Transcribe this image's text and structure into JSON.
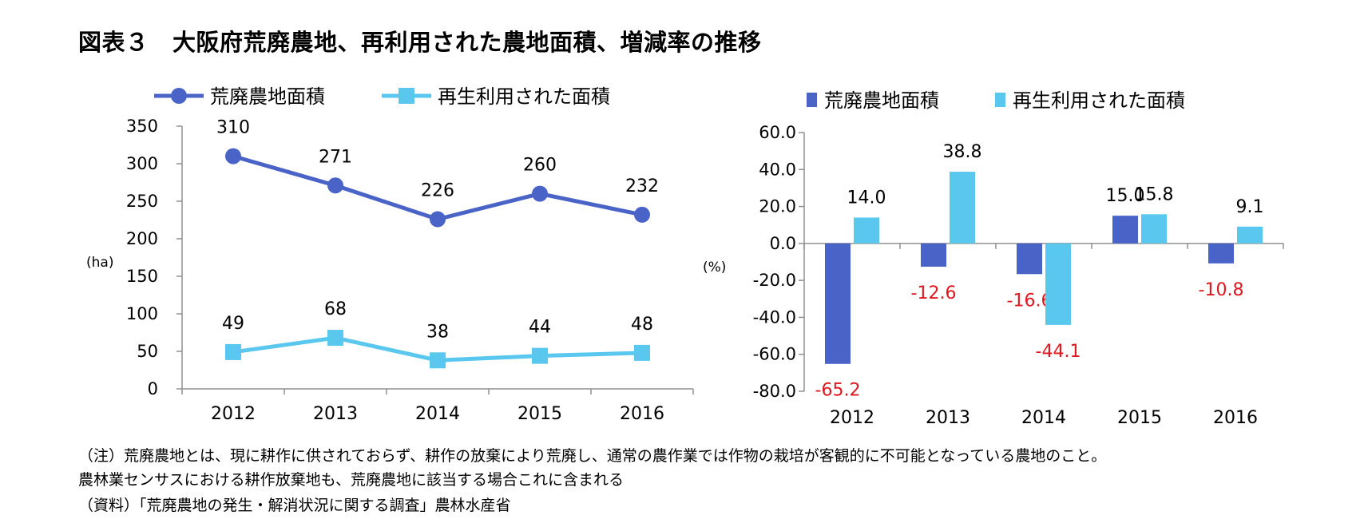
{
  "title": "図表３　大阪府荒廃農地、再利用された農地面積、増減率の推移",
  "notes": [
    "（注）荒廃農地とは、現に耕作に供されておらず、耕作の放棄により荒廃し、通常の農作業では作物の栽培が客観的に不可能となっている農地のこと。",
    "農林業センサスにおける耕作放棄地も、荒廃農地に該当する場合これに含まれる",
    "（資料）「荒廃農地の発生・解消状況に関する調査」農林水産省"
  ],
  "colors": {
    "series1": "#4a63c7",
    "series2": "#5ac8ee",
    "negative_label": "#e0161e",
    "axis": "#909090"
  },
  "chart_data": [
    {
      "type": "line",
      "categories": [
        "2012",
        "2013",
        "2014",
        "2015",
        "2016"
      ],
      "series": [
        {
          "name": "荒廃農地面積",
          "values": [
            310,
            271,
            226,
            260,
            232
          ],
          "marker": "circle"
        },
        {
          "name": "再生利用された面積",
          "values": [
            49,
            68,
            38,
            44,
            48
          ],
          "marker": "square"
        }
      ],
      "ylabel": "(ha)",
      "ylim": [
        0,
        350
      ],
      "yticks": [
        "0",
        "50",
        "100",
        "150",
        "200",
        "250",
        "300",
        "350"
      ],
      "legend": "top"
    },
    {
      "type": "bar",
      "categories": [
        "2012",
        "2013",
        "2014",
        "2015",
        "2016"
      ],
      "series": [
        {
          "name": "荒廃農地面積",
          "values": [
            -65.2,
            -12.6,
            -16.6,
            15.0,
            -10.8
          ],
          "labels": [
            "-65.2",
            "-12.6",
            "-16.6",
            "15.0",
            "-10.8"
          ]
        },
        {
          "name": "再生利用された面積",
          "values": [
            14.0,
            38.8,
            -44.1,
            15.8,
            9.1
          ],
          "labels": [
            "14.0",
            "38.8",
            "-44.1",
            "15.8",
            "9.1"
          ]
        }
      ],
      "ylabel": "(%)",
      "ylim": [
        -80,
        60
      ],
      "yticks": [
        "-80.0",
        "-60.0",
        "-40.0",
        "-20.0",
        "0.0",
        "20.0",
        "40.0",
        "60.0"
      ],
      "legend": "top"
    }
  ]
}
